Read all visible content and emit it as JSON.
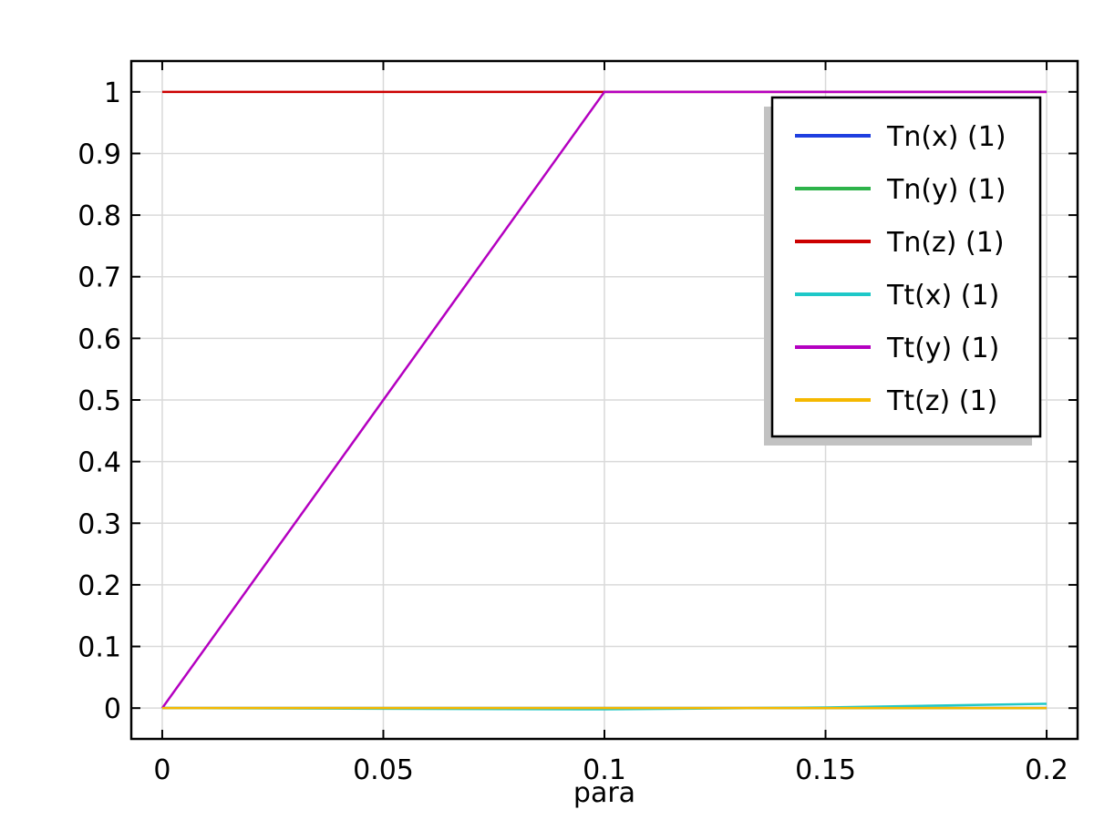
{
  "chart_data": {
    "type": "line",
    "title": "",
    "xlabel": "para",
    "ylabel": "",
    "xlim": [
      -0.007,
      0.207
    ],
    "ylim": [
      -0.05,
      1.05
    ],
    "xticks": [
      0,
      0.05,
      0.1,
      0.15,
      0.2
    ],
    "xtick_labels": [
      "0",
      "0.05",
      "0.1",
      "0.15",
      "0.2"
    ],
    "yticks": [
      0,
      0.1,
      0.2,
      0.3,
      0.4,
      0.5,
      0.6,
      0.7,
      0.8,
      0.9,
      1
    ],
    "ytick_labels": [
      "0",
      "0.1",
      "0.2",
      "0.3",
      "0.4",
      "0.5",
      "0.6",
      "0.7",
      "0.8",
      "0.9",
      "1"
    ],
    "grid": true,
    "legend_position": "top-right",
    "series": [
      {
        "name": "Tn(x) (1)",
        "color": "#1f3fe0",
        "x": [
          0,
          0.05,
          0.1,
          0.15,
          0.2
        ],
        "y": [
          0,
          0,
          0,
          0,
          0
        ]
      },
      {
        "name": "Tn(y) (1)",
        "color": "#2db34a",
        "x": [
          0,
          0.05,
          0.1,
          0.15,
          0.2
        ],
        "y": [
          0,
          0,
          0,
          0,
          0
        ]
      },
      {
        "name": "Tn(z) (1)",
        "color": "#cc0000",
        "x": [
          0,
          0.05,
          0.1,
          0.15,
          0.2
        ],
        "y": [
          1,
          1,
          1,
          1,
          1
        ]
      },
      {
        "name": "Tt(x) (1)",
        "color": "#1ec8c8",
        "x": [
          0,
          0.05,
          0.1,
          0.15,
          0.2
        ],
        "y": [
          0,
          -0.001,
          -0.002,
          0.001,
          0.007
        ]
      },
      {
        "name": "Tt(y) (1)",
        "color": "#b400c0",
        "x": [
          0,
          0.05,
          0.1,
          0.15,
          0.2
        ],
        "y": [
          0,
          0.5,
          1,
          1,
          1
        ]
      },
      {
        "name": "Tt(z) (1)",
        "color": "#f5b800",
        "x": [
          0,
          0.05,
          0.1,
          0.15,
          0.2
        ],
        "y": [
          0,
          0,
          0,
          0,
          0
        ]
      }
    ]
  }
}
